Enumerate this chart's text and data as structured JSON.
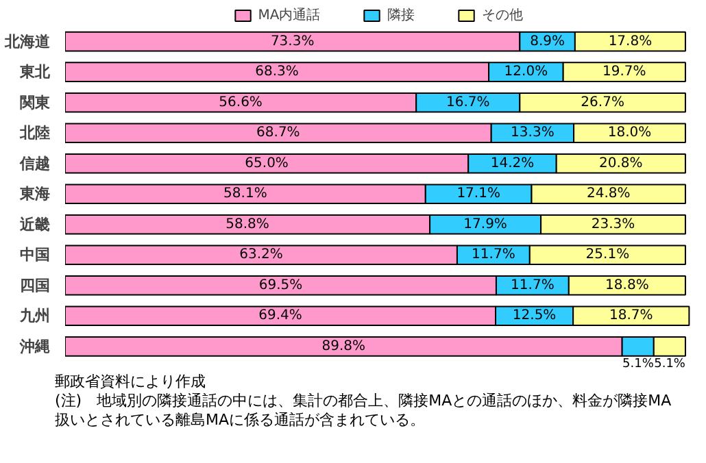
{
  "chart_data": {
    "type": "bar",
    "orientation": "horizontal",
    "stacked": true,
    "categories": [
      "北海道",
      "東北",
      "関東",
      "北陸",
      "信越",
      "東海",
      "近畿",
      "中国",
      "四国",
      "九州",
      "沖縄"
    ],
    "xlim": [
      0,
      101
    ],
    "tick_labels": false,
    "grid": false,
    "legend": "top",
    "series": [
      {
        "name": "MA内通話",
        "color": "#ff99cc",
        "values": [
          73.3,
          68.3,
          56.6,
          68.7,
          65.0,
          58.1,
          58.8,
          63.2,
          69.5,
          69.4,
          89.8
        ],
        "value_labels": [
          "73.3%",
          "68.3%",
          "56.6%",
          "68.7%",
          "65.0%",
          "58.1%",
          "58.8%",
          "63.2%",
          "69.5%",
          "69.4%",
          "89.8%"
        ]
      },
      {
        "name": "隣接",
        "color": "#33ccff",
        "values": [
          8.9,
          12.0,
          16.7,
          13.3,
          14.2,
          17.1,
          17.9,
          11.7,
          11.7,
          12.5,
          5.1
        ],
        "value_labels": [
          "8.9%",
          "12.0%",
          "16.7%",
          "13.3%",
          "14.2%",
          "17.1%",
          "17.9%",
          "11.7%",
          "11.7%",
          "12.5%",
          "5.1%"
        ]
      },
      {
        "name": "その他",
        "color": "#ffff99",
        "values": [
          17.8,
          19.7,
          26.7,
          18.0,
          20.8,
          24.8,
          23.3,
          25.1,
          18.8,
          18.7,
          5.1
        ],
        "value_labels": [
          "17.8%",
          "19.7%",
          "26.7%",
          "18.0%",
          "20.8%",
          "24.8%",
          "23.3%",
          "25.1%",
          "18.8%",
          "18.7%",
          "5.1%"
        ]
      }
    ],
    "annotations": [
      "郵政省資料により作成",
      "(注)　地域別の隣接通話の中には、集計の都合上、隣接MAとの通話のほか、料金が隣接MA扱いとされている離島MAに係る通話が含まれている。"
    ]
  }
}
